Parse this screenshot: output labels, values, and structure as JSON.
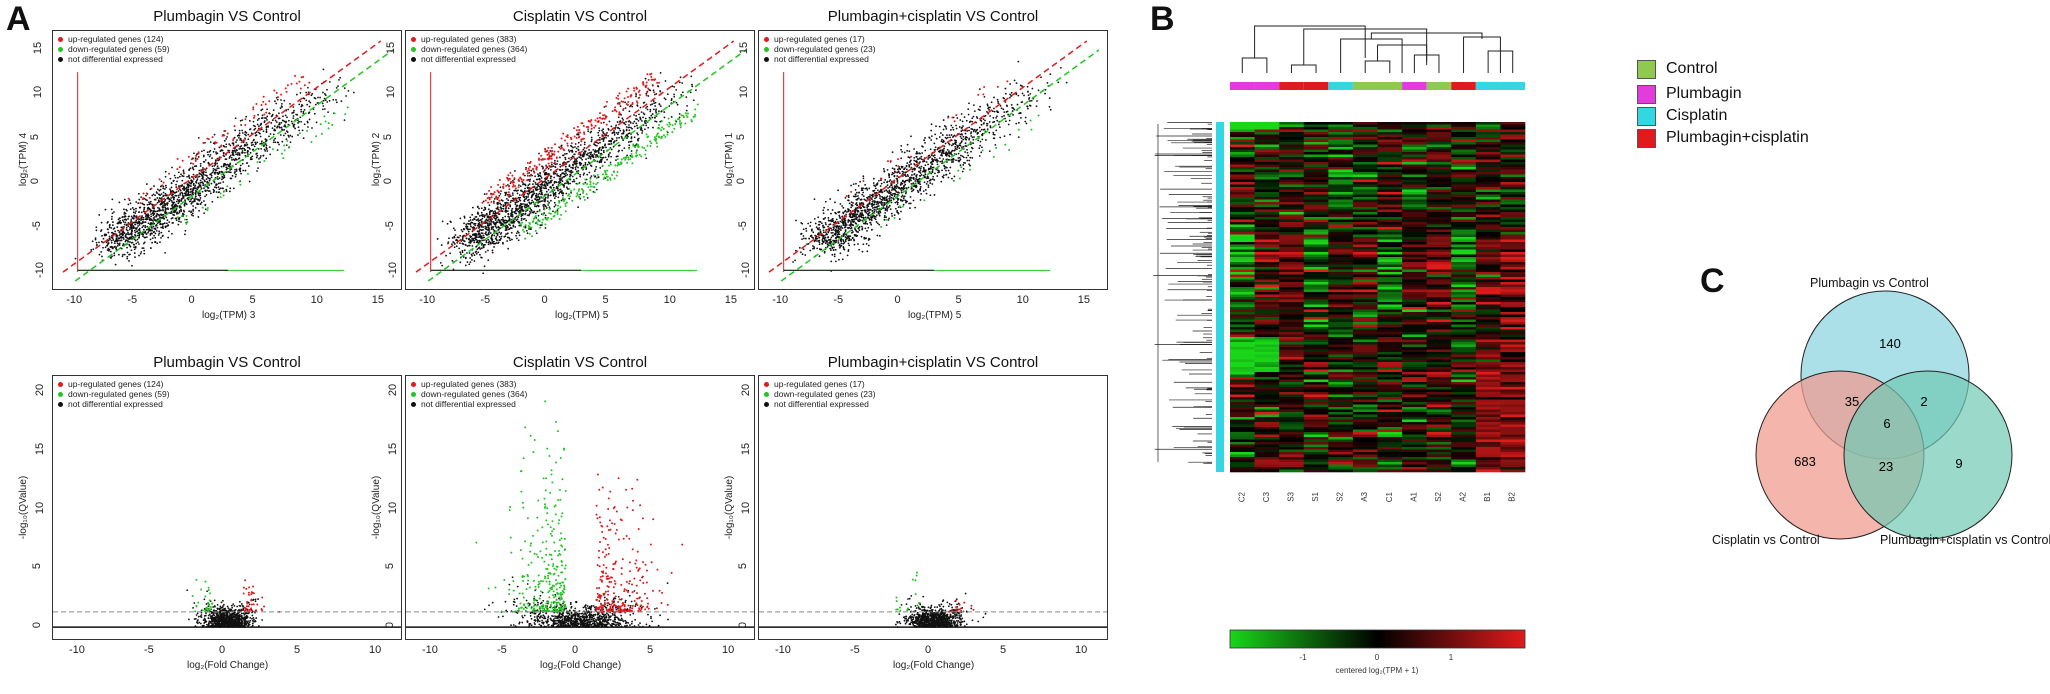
{
  "panels": {
    "a": "A",
    "b": "B",
    "c": "C"
  },
  "scatter_plots": [
    {
      "title": "Plumbagin VS Control",
      "xlabel": "log₂(TPM) 3",
      "ylabel": "log₂(TPM) 4",
      "legend": [
        "up-regulated genes (124)",
        "down-regulated genes (59)",
        "not differential expressed"
      ]
    },
    {
      "title": "Cisplatin VS Control",
      "xlabel": "log₂(TPM) 5",
      "ylabel": "log₂(TPM) 2",
      "legend": [
        "up-regulated genes (383)",
        "down-regulated genes (364)",
        "not differential expressed"
      ]
    },
    {
      "title": "Plumbagin+cisplatin VS Control",
      "xlabel": "log₂(TPM) 5",
      "ylabel": "log₂(TPM) 1",
      "legend": [
        "up-regulated genes (17)",
        "down-regulated genes (23)",
        "not differential expressed"
      ]
    }
  ],
  "volcano_plots": [
    {
      "title": "Plumbagin VS Control",
      "xlabel": "log₂(Fold Change)",
      "ylabel": "-log₁₀(QValue)",
      "legend": [
        "up-regulated genes (124)",
        "down-regulated genes (59)",
        "not differential expressed"
      ]
    },
    {
      "title": "Cisplatin VS Control",
      "xlabel": "log₂(Fold Change)",
      "ylabel": "-log₁₀(QValue)",
      "legend": [
        "up-regulated genes (383)",
        "down-regulated genes (364)",
        "not differential expressed"
      ]
    },
    {
      "title": "Plumbagin+cisplatin VS Control",
      "xlabel": "log₂(Fold Change)",
      "ylabel": "-log₁₀(QValue)",
      "legend": [
        "up-regulated genes (17)",
        "down-regulated genes (23)",
        "not differential expressed"
      ]
    }
  ],
  "scatter_ticks": {
    "x": [
      "-10",
      "-5",
      "0",
      "5",
      "10",
      "15"
    ],
    "y": [
      "15",
      "10",
      "5",
      "0",
      "-5",
      "-10"
    ]
  },
  "volcano_ticks": {
    "x": [
      "-10",
      "-5",
      "0",
      "5",
      "10"
    ],
    "y": [
      "20",
      "15",
      "10",
      "5",
      "0"
    ]
  },
  "heatmap": {
    "legend": [
      {
        "label": "Control",
        "color": "#8fc94f"
      },
      {
        "label": "Plumbagin",
        "color": "#e23ddc"
      },
      {
        "label": "Cisplatin",
        "color": "#33d6e2"
      },
      {
        "label": "Plumbagin+cisplatin",
        "color": "#e01b1b"
      }
    ],
    "columns": [
      "C2",
      "C3",
      "S3",
      "S1",
      "S2",
      "A3",
      "C1",
      "A1",
      "S2",
      "A2",
      "B1",
      "B2"
    ],
    "column_groups": [
      "#e23ddc",
      "#e23ddc",
      "#e01b1b",
      "#e01b1b",
      "#33d6e2",
      "#8fc94f",
      "#8fc94f",
      "#e23ddc",
      "#8fc94f",
      "#e01b1b",
      "#33d6e2",
      "#33d6e2"
    ],
    "colorbar_ticks": [
      "-1",
      "0",
      "1"
    ],
    "colorbar_label": "centered log₂(TPM + 1)",
    "colors": {
      "low": "#19d619",
      "mid": "#000000",
      "high": "#e01b1b"
    }
  },
  "venn": {
    "sets": [
      {
        "label": "Plumbagin vs Control",
        "color": "#8fd6e2"
      },
      {
        "label": "Cisplatin vs Control",
        "color": "#ef9c90"
      },
      {
        "label": "Plumbagin+cisplatin vs Control",
        "color": "#70c9b4"
      }
    ],
    "counts": {
      "a_only": "140",
      "b_only": "683",
      "c_only": "9",
      "ab": "35",
      "ac": "2",
      "bc": "23",
      "abc": "6"
    }
  },
  "colors": {
    "up": "#e01b1b",
    "down": "#22c522",
    "ns": "#111111"
  }
}
